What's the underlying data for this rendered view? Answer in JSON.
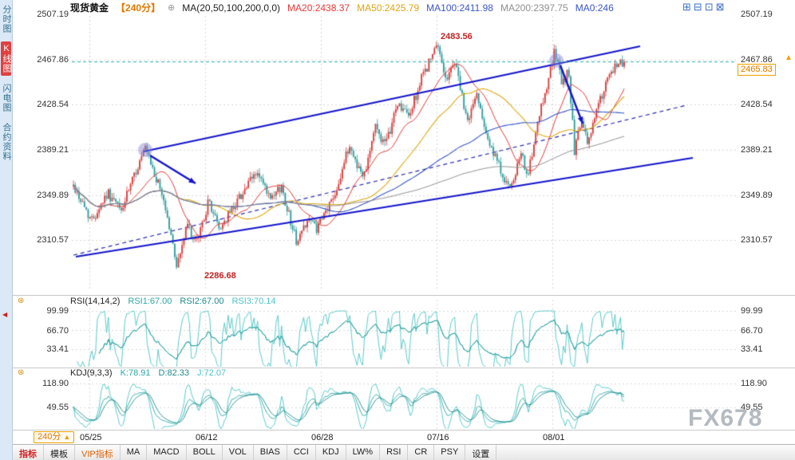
{
  "header": {
    "symbol": "现货黄金",
    "period": "【240分】",
    "link_icon": "⊕",
    "ma_settings": "MA(20,50,100,200,0,0)",
    "ma_values": [
      {
        "label": "MA20:2438.37",
        "color": "#e23a3a"
      },
      {
        "label": "MA50:2425.79",
        "color": "#dda414"
      },
      {
        "label": "MA100:2411.98",
        "color": "#3a57c4"
      },
      {
        "label": "MA200:2397.75",
        "color": "#8f8f8f"
      },
      {
        "label": "MA0:246",
        "color": "#3a57c4"
      }
    ],
    "window_icons": [
      {
        "glyph": "⊞",
        "name": "zoom-in"
      },
      {
        "glyph": "⊟",
        "name": "zoom-out"
      },
      {
        "glyph": "⊡",
        "name": "split-view"
      },
      {
        "glyph": "⊠",
        "name": "fullscreen"
      }
    ]
  },
  "sidebar": {
    "scroll_icon": "◀",
    "tabs": [
      {
        "label": "分时图",
        "selected": false
      },
      {
        "label": "K线图",
        "selected": true
      },
      {
        "label": "闪电图",
        "selected": false
      },
      {
        "label": "合约资料",
        "selected": false
      }
    ]
  },
  "price_axis": {
    "labels": [
      "2507.19",
      "2467.86",
      "2428.54",
      "2389.21",
      "2349.89",
      "2310.57"
    ],
    "current": "2465.83",
    "arrow_icon": "▲"
  },
  "annotations": {
    "high": "2483.56",
    "low": "2286.68"
  },
  "rsi": {
    "title": "RSI(14,14,2)",
    "values": [
      {
        "label": "RSI1:67.00"
      },
      {
        "label": "RSI2:67.00"
      },
      {
        "label": "RSI3:70.14"
      }
    ],
    "axis": [
      "99.99",
      "66.70",
      "33.41"
    ],
    "settings_icon": "⊛"
  },
  "kdj": {
    "title": "KDJ(9,3,3)",
    "values": [
      {
        "label": "K:78.91"
      },
      {
        "label": "D:82.33"
      },
      {
        "label": "J:72.07"
      }
    ],
    "axis": [
      "118.90",
      "49.55"
    ],
    "settings_icon": "⊛"
  },
  "time_axis": {
    "period_button": "240分",
    "period_arrow": "▲",
    "labels": [
      "05/25",
      "06/12",
      "06/28",
      "07/16",
      "08/01"
    ]
  },
  "toolbar": {
    "tabs": [
      {
        "label": "指标",
        "style": "sel"
      },
      {
        "label": "模板",
        "style": ""
      },
      {
        "label": "VIP指标",
        "style": "vip"
      },
      {
        "label": "MA",
        "style": ""
      },
      {
        "label": "MACD",
        "style": ""
      },
      {
        "label": "BOLL",
        "style": ""
      },
      {
        "label": "VOL",
        "style": ""
      },
      {
        "label": "BIAS",
        "style": ""
      },
      {
        "label": "CCI",
        "style": ""
      },
      {
        "label": "KDJ",
        "style": ""
      },
      {
        "label": "LW%",
        "style": ""
      },
      {
        "label": "RSI",
        "style": ""
      },
      {
        "label": "CR",
        "style": ""
      },
      {
        "label": "PSY",
        "style": ""
      },
      {
        "label": "设置",
        "style": ""
      }
    ]
  },
  "watermark": "FX678",
  "chart_data": {
    "type": "candlestick",
    "symbol": "现货黄金",
    "interval": "240min",
    "x_labels": [
      "05/25",
      "06/12",
      "06/28",
      "07/16",
      "08/01"
    ],
    "y_ticks": [
      2507.19,
      2467.86,
      2428.54,
      2389.21,
      2349.89,
      2310.57
    ],
    "last_price": 2465.83,
    "high_annotation": 2483.56,
    "low_annotation": 2286.68,
    "ma_legend": {
      "MA20": 2438.37,
      "MA50": 2425.79,
      "MA100": 2411.98,
      "MA200": 2397.75
    },
    "bars": 300,
    "price_path": [
      [
        0,
        2358
      ],
      [
        0.033,
        2328
      ],
      [
        0.062,
        2352
      ],
      [
        0.087,
        2336
      ],
      [
        0.113,
        2370
      ],
      [
        0.13,
        2390
      ],
      [
        0.164,
        2346
      ],
      [
        0.188,
        2288
      ],
      [
        0.207,
        2325
      ],
      [
        0.222,
        2306
      ],
      [
        0.246,
        2345
      ],
      [
        0.265,
        2320
      ],
      [
        0.301,
        2348
      ],
      [
        0.333,
        2370
      ],
      [
        0.359,
        2344
      ],
      [
        0.377,
        2358
      ],
      [
        0.406,
        2308
      ],
      [
        0.425,
        2330
      ],
      [
        0.443,
        2320
      ],
      [
        0.475,
        2352
      ],
      [
        0.501,
        2393
      ],
      [
        0.526,
        2365
      ],
      [
        0.548,
        2410
      ],
      [
        0.567,
        2392
      ],
      [
        0.588,
        2430
      ],
      [
        0.609,
        2418
      ],
      [
        0.635,
        2455
      ],
      [
        0.661,
        2480
      ],
      [
        0.678,
        2450
      ],
      [
        0.693,
        2468
      ],
      [
        0.714,
        2413
      ],
      [
        0.733,
        2438
      ],
      [
        0.758,
        2390
      ],
      [
        0.794,
        2353
      ],
      [
        0.812,
        2385
      ],
      [
        0.826,
        2368
      ],
      [
        0.849,
        2425
      ],
      [
        0.874,
        2475
      ],
      [
        0.888,
        2445
      ],
      [
        0.899,
        2460
      ],
      [
        0.91,
        2387
      ],
      [
        0.922,
        2415
      ],
      [
        0.933,
        2395
      ],
      [
        0.954,
        2430
      ],
      [
        0.971,
        2450
      ],
      [
        0.99,
        2466
      ],
      [
        1,
        2465.83
      ]
    ],
    "indicators": {
      "rsi": {
        "params": "14,14,2",
        "rsi1": 67.0,
        "rsi2": 67.0,
        "rsi3": 70.14,
        "ticks": [
          99.99,
          66.7,
          33.41
        ]
      },
      "kdj": {
        "params": "9,3,3",
        "k": 78.91,
        "d": 82.33,
        "j": 72.07,
        "ticks": [
          118.9,
          49.55
        ]
      }
    },
    "colors": {
      "up": "#d83b3b",
      "down": "#2e9d9d",
      "ma20": "#e23a3a",
      "ma50": "#ddaa14",
      "ma100": "#3a57c4",
      "ma200": "#8f8f8f",
      "indicator1": "#2aa7a7",
      "indicator2": "#1d8b8b",
      "indicator3": "#4cc4c4",
      "trendline": "#1414cc",
      "grid": "#d9d9d9",
      "current_price_line": "#2ab0b0",
      "highlight": "rgba(130,130,210,0.45)"
    },
    "overlays": {
      "channel_upper": [
        90,
        170,
        712,
        38
      ],
      "channel_lower": [
        5,
        302,
        778,
        178
      ],
      "dashed_mid": [
        2,
        300,
        770,
        112
      ],
      "arrows": [
        [
          98,
          175,
          155,
          210
        ],
        [
          612,
          62,
          640,
          135
        ]
      ],
      "highlights": [
        [
          92,
          168,
          9
        ],
        [
          607,
          56,
          9
        ]
      ]
    }
  }
}
